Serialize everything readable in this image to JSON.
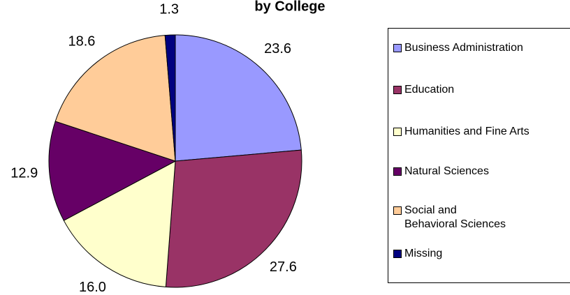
{
  "chart_data": {
    "type": "pie",
    "title": "by College",
    "categories": [
      "Business Administration",
      "Education",
      "Humanities and Fine Arts",
      "Natural Sciences",
      "Social and Behavioral Sciences",
      "Missing"
    ],
    "values": [
      23.6,
      27.6,
      16.0,
      12.9,
      18.6,
      1.3
    ],
    "value_labels": [
      "23.6",
      "27.6",
      "16.0",
      "12.9",
      "18.6",
      "1.3"
    ],
    "colors": [
      "#9999ff",
      "#993366",
      "#ffffcc",
      "#660066",
      "#ffcc99",
      "#000080"
    ]
  }
}
